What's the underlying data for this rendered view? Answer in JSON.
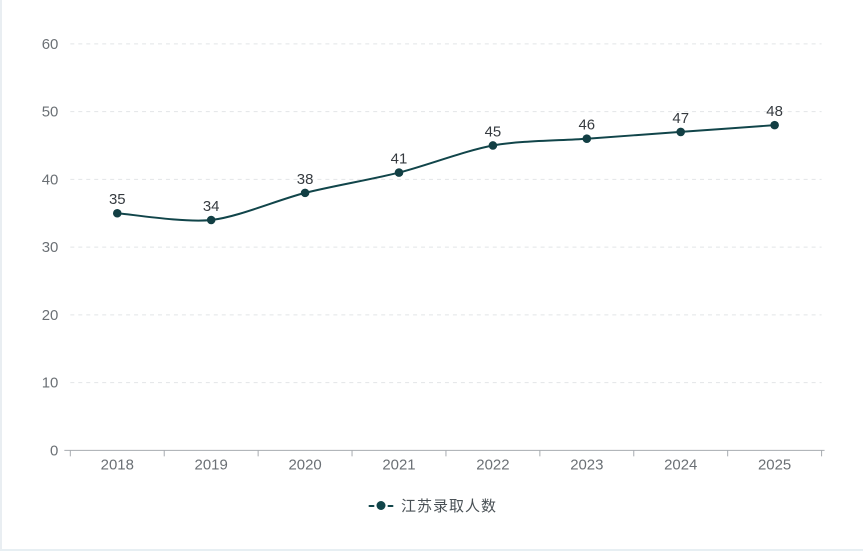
{
  "chart_data": {
    "type": "line",
    "categories": [
      "2018",
      "2019",
      "2020",
      "2021",
      "2022",
      "2023",
      "2024",
      "2025"
    ],
    "series": [
      {
        "name": "江苏录取人数",
        "values": [
          35,
          34,
          38,
          41,
          45,
          46,
          47,
          48
        ]
      }
    ],
    "ylim": [
      0,
      60
    ],
    "yticks": [
      0,
      10,
      20,
      30,
      40,
      50,
      60
    ],
    "grid": "horizontal-dashed",
    "legend_position": "bottom-center",
    "smooth": true,
    "value_labels_shown": true,
    "colors": {
      "series": "#11454a",
      "point": "#123f44",
      "value_label": "#363b40",
      "axis_label": "#6b7075",
      "axis_line": "#a7abb0",
      "gridline": "#e2e5e8",
      "legend_text": "#4a5156",
      "background": "#ffffff",
      "card_border": "#e9eef2"
    }
  }
}
